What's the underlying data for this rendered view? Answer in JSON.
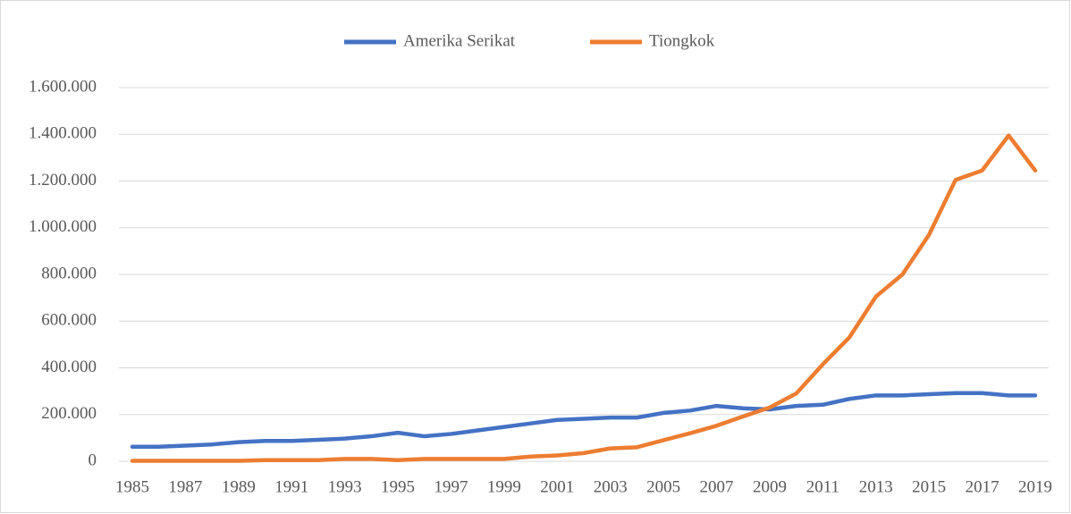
{
  "chart_data": {
    "type": "line",
    "categories": [
      "1985",
      null,
      "1987",
      null,
      "1989",
      null,
      "1991",
      null,
      "1993",
      null,
      "1995",
      null,
      "1997",
      null,
      "1999",
      null,
      "2001",
      null,
      "2003",
      null,
      "2005",
      null,
      "2007",
      null,
      "2009",
      null,
      "2011",
      null,
      "2013",
      null,
      "2015",
      null,
      "2017",
      null,
      "2019"
    ],
    "series": [
      {
        "name": "Amerika Serikat",
        "color": "#4472c4",
        "values": [
          62000,
          62000,
          67000,
          72000,
          82000,
          87000,
          87000,
          92000,
          97000,
          107000,
          122000,
          107000,
          117000,
          132000,
          147000,
          162000,
          177000,
          182000,
          187000,
          187000,
          207000,
          217000,
          237000,
          227000,
          222000,
          237000,
          242000,
          267000,
          282000,
          282000,
          287000,
          292000,
          292000,
          282000,
          282000
        ]
      },
      {
        "name": "Tiongkok",
        "color": "#ed7d31",
        "values": [
          2000,
          2000,
          2000,
          2000,
          2000,
          5000,
          5000,
          5000,
          10000,
          10000,
          5000,
          10000,
          10000,
          10000,
          10000,
          20000,
          25000,
          35000,
          55000,
          60000,
          90000,
          120000,
          152000,
          192000,
          230000,
          290000,
          415000,
          530000,
          705000,
          800000,
          970000,
          1205000,
          1245000,
          1395000,
          1245000
        ]
      }
    ],
    "ylim": [
      0,
      1600000
    ],
    "yticks": [
      0,
      {
        "value": 200000,
        "label": "200.000"
      },
      {
        "value": 400000,
        "label": "400.000"
      },
      {
        "value": 600000,
        "label": "600.000"
      },
      {
        "value": 800000,
        "label": "800.000"
      },
      {
        "value": 1000000,
        "label": "1.000.000"
      },
      {
        "value": 1200000,
        "label": "1.200.000"
      },
      {
        "value": 1400000,
        "label": "1.400.000"
      },
      {
        "value": 1600000,
        "label": "1.600.000"
      }
    ],
    "grid": true,
    "legend": "top"
  }
}
